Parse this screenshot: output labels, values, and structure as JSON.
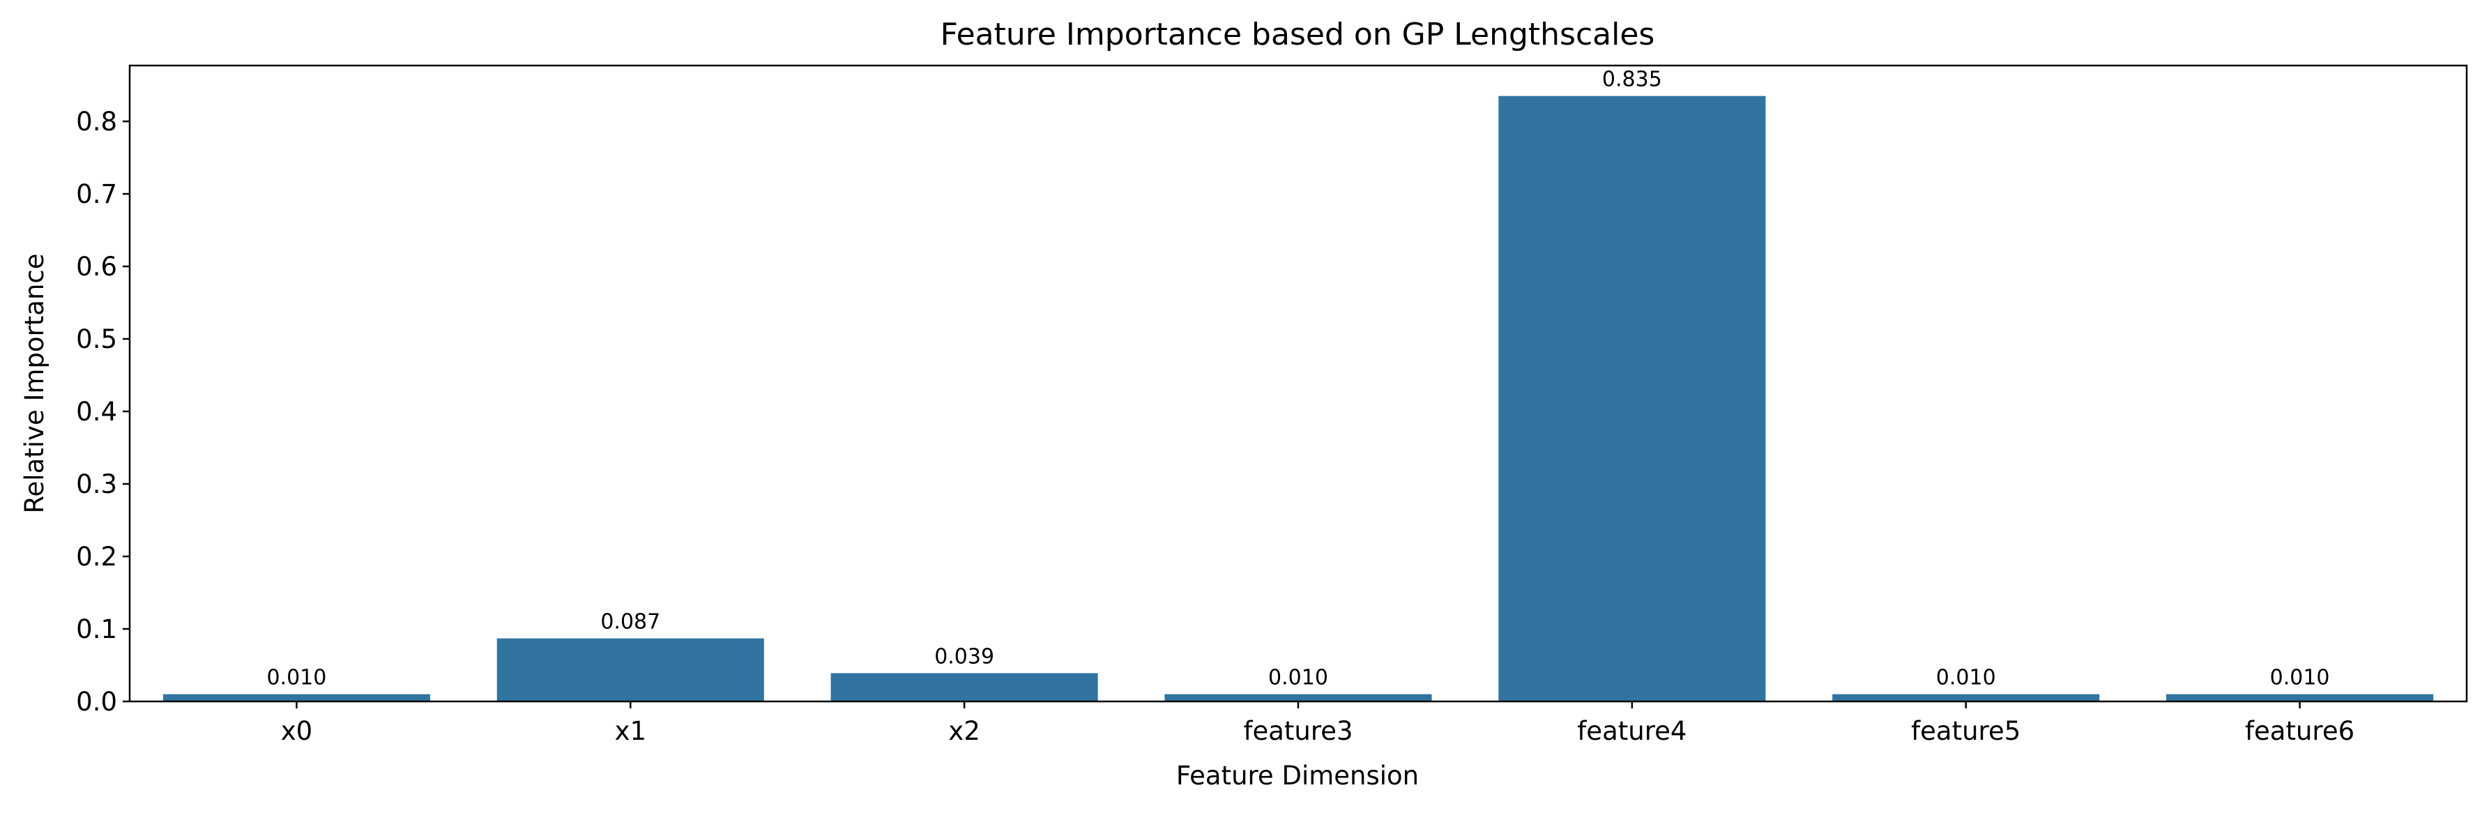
{
  "chart_data": {
    "type": "bar",
    "title": "Feature Importance based on GP Lengthscales",
    "xlabel": "Feature Dimension",
    "ylabel": "Relative Importance",
    "categories": [
      "x0",
      "x1",
      "x2",
      "feature3",
      "feature4",
      "feature5",
      "feature6"
    ],
    "values": [
      0.01,
      0.087,
      0.039,
      0.01,
      0.835,
      0.01,
      0.01
    ],
    "value_labels": [
      "0.010",
      "0.087",
      "0.039",
      "0.010",
      "0.835",
      "0.010",
      "0.010"
    ],
    "ylim": [
      0,
      0.877
    ],
    "yticks": [
      0.0,
      0.1,
      0.2,
      0.3,
      0.4,
      0.5,
      0.6,
      0.7,
      0.8
    ],
    "ytick_labels": [
      "0.0",
      "0.1",
      "0.2",
      "0.3",
      "0.4",
      "0.5",
      "0.6",
      "0.7",
      "0.8"
    ],
    "grid": false,
    "colors": {
      "bar": "#3274a1"
    }
  }
}
